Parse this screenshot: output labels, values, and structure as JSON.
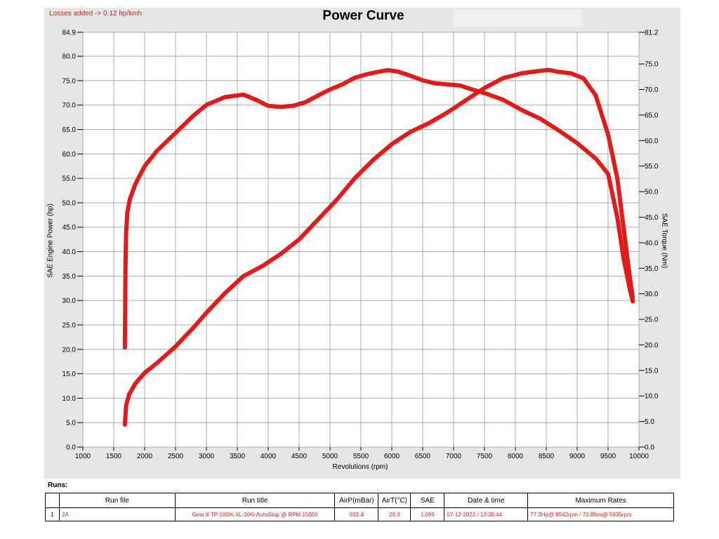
{
  "header": {
    "losses_note": "Losses added -> 0.12 hp/kmh"
  },
  "chart_data": {
    "type": "line",
    "title": "Power Curve",
    "xlabel": "Revolutions (rpm)",
    "ylabel": "SAE Engine Power (hp)",
    "y2label": "SAE Torque (Nm)",
    "xlim": [
      1000,
      10000
    ],
    "ylim": [
      0.0,
      84.9
    ],
    "y2lim": [
      0.0,
      81.2
    ],
    "x_ticks": [
      "1000",
      "1500",
      "2000",
      "2500",
      "3000",
      "3500",
      "4000",
      "4500",
      "5000",
      "5500",
      "6000",
      "6500",
      "7000",
      "7500",
      "8000",
      "8500",
      "9000",
      "9500",
      "10000"
    ],
    "y_ticks": [
      "0.0",
      "5.0",
      "10.0",
      "15.0",
      "20.0",
      "25.0",
      "30.0",
      "35.0",
      "40.0",
      "45.0",
      "50.0",
      "55.0",
      "60.0",
      "65.0",
      "70.0",
      "75.0",
      "80.0",
      "84.9"
    ],
    "y2_ticks": [
      "0.0",
      "5.0",
      "10.0",
      "15.0",
      "20.0",
      "25.0",
      "30.0",
      "35.0",
      "40.0",
      "45.0",
      "50.0",
      "55.0",
      "60.0",
      "65.0",
      "70.0",
      "75.0",
      "81.2"
    ],
    "grid": true,
    "series": [
      {
        "axis": "left",
        "color": "#e41a1a",
        "x": [
          1680,
          1700,
          1750,
          1850,
          2000,
          2200,
          2500,
          2800,
          3000,
          3300,
          3600,
          3900,
          4200,
          4500,
          4800,
          5100,
          5400,
          5700,
          6000,
          6300,
          6600,
          6900,
          7200,
          7500,
          7800,
          8100,
          8400,
          8542,
          8700,
          8900,
          9100,
          9300,
          9500,
          9650,
          9750,
          9850,
          9900
        ],
        "y": [
          4.6,
          8.5,
          10.8,
          13.0,
          15.2,
          17.2,
          20.6,
          24.6,
          27.5,
          31.5,
          35.0,
          37.0,
          39.5,
          42.5,
          46.5,
          50.5,
          55.0,
          58.8,
          62.0,
          64.5,
          66.3,
          68.5,
          71.0,
          73.5,
          75.5,
          76.5,
          77.0,
          77.2,
          76.8,
          76.5,
          75.5,
          72.0,
          64.0,
          55.0,
          45.0,
          35.0,
          30.5
        ]
      },
      {
        "axis": "right",
        "color": "#e41a1a",
        "x": [
          1680,
          1690,
          1700,
          1720,
          1760,
          1850,
          2000,
          2200,
          2500,
          2800,
          3000,
          3300,
          3600,
          3800,
          4000,
          4200,
          4400,
          4600,
          4800,
          5000,
          5200,
          5400,
          5600,
          5800,
          5935,
          6100,
          6300,
          6500,
          6700,
          6900,
          7100,
          7300,
          7500,
          7800,
          8100,
          8400,
          8700,
          9000,
          9300,
          9500,
          9650,
          9750,
          9850,
          9900
        ],
        "y": [
          19.5,
          35.0,
          42.0,
          46.0,
          48.5,
          51.5,
          55.0,
          58.0,
          61.5,
          65.0,
          67.0,
          68.5,
          69.0,
          68.0,
          66.8,
          66.6,
          66.8,
          67.5,
          68.8,
          70.0,
          71.0,
          72.3,
          73.0,
          73.5,
          73.8,
          73.5,
          72.7,
          71.8,
          71.2,
          71.0,
          70.8,
          70.0,
          69.3,
          68.0,
          66.0,
          64.3,
          62.0,
          59.5,
          56.5,
          53.5,
          45.0,
          37.0,
          31.0,
          28.5
        ]
      }
    ]
  },
  "runs": {
    "label": "Runs:",
    "columns": [
      "",
      "Run file",
      "Run title",
      "AirP(mBar)",
      "AirT(°C)",
      "SAE",
      "Date & time",
      "Maximum Rates"
    ],
    "rows": [
      {
        "index": "1",
        "file": "2A",
        "title": "Gear:6 TP:100% XL:20% AutoStop @ RPM:15000",
        "airp": "932.4",
        "airt": "29.3",
        "sae": "1.099",
        "datetime": "07-12-2022 / 13:30:44",
        "max_rates": "77.2Hp@ 8542rpm / 73.8Nm@ 5935rpm"
      }
    ]
  }
}
